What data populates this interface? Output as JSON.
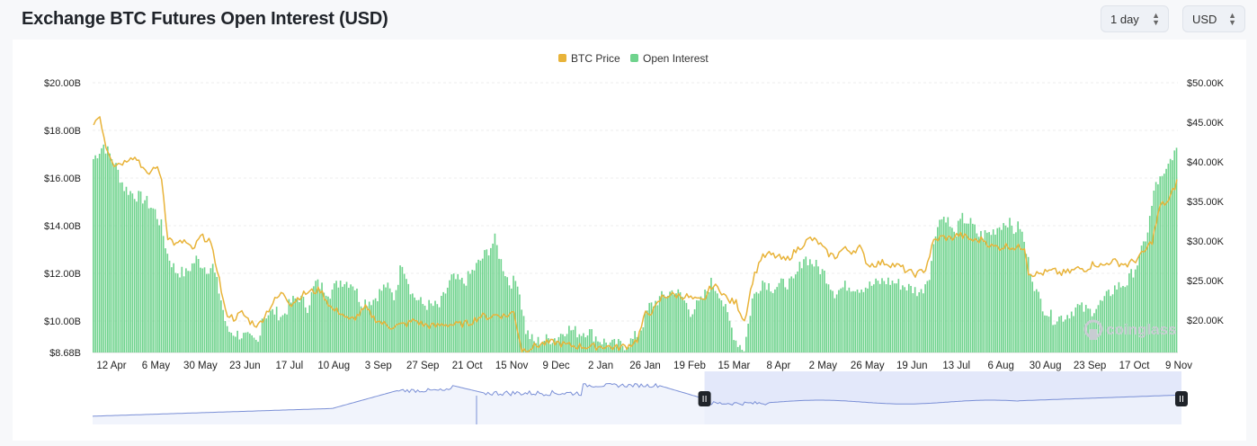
{
  "header": {
    "title": "Exchange BTC Futures Open Interest (USD)",
    "interval_select": {
      "value": "1 day"
    },
    "currency_select": {
      "value": "USD"
    }
  },
  "watermark": "coinglass",
  "colors": {
    "price_line": "#e8b339",
    "open_interest_bar": "#6fd38d",
    "navigator_line": "#7a8fd6",
    "navigator_fill": "#e3e8fa"
  },
  "chart_data": {
    "type": "bar",
    "legend": [
      {
        "name": "BTC Price",
        "color": "#e8b339"
      },
      {
        "name": "Open Interest",
        "color": "#6fd38d"
      }
    ],
    "legend_position": "top-center",
    "grid": true,
    "x_tick_labels": [
      "12 Apr",
      "6 May",
      "30 May",
      "23 Jun",
      "17 Jul",
      "10 Aug",
      "3 Sep",
      "27 Sep",
      "21 Oct",
      "15 Nov",
      "9 Dec",
      "2 Jan",
      "26 Jan",
      "19 Feb",
      "15 Mar",
      "8 Apr",
      "2 May",
      "26 May",
      "19 Jun",
      "13 Jul",
      "6 Aug",
      "30 Aug",
      "23 Sep",
      "17 Oct",
      "9 Nov"
    ],
    "y_left": {
      "label": "",
      "ticks": [
        "$8.68B",
        "$10.00B",
        "$12.00B",
        "$14.00B",
        "$16.00B",
        "$18.00B",
        "$20.00B"
      ],
      "ylim": [
        8.68,
        20.0
      ],
      "unit": "B USD"
    },
    "y_right": {
      "label": "",
      "ticks": [
        "$20.00K",
        "$25.00K",
        "$30.00K",
        "$35.00K",
        "$40.00K",
        "$45.00K",
        "$50.00K"
      ],
      "ylim": [
        15.9,
        50.0
      ],
      "unit": "K USD"
    },
    "series": [
      {
        "name": "Open Interest",
        "kind": "bar",
        "axis": "left",
        "keypoints": [
          [
            0,
            16.8
          ],
          [
            5,
            17.4
          ],
          [
            10,
            16.7
          ],
          [
            15,
            15.6
          ],
          [
            20,
            15.3
          ],
          [
            25,
            15.1
          ],
          [
            30,
            14.6
          ],
          [
            33,
            14.0
          ],
          [
            36,
            12.8
          ],
          [
            40,
            12.1
          ],
          [
            45,
            12.0
          ],
          [
            50,
            12.6
          ],
          [
            55,
            12.2
          ],
          [
            58,
            12.3
          ],
          [
            62,
            10.9
          ],
          [
            65,
            9.6
          ],
          [
            72,
            9.4
          ],
          [
            77,
            9.2
          ],
          [
            80,
            9.1
          ],
          [
            82,
            10.2
          ],
          [
            88,
            10.4
          ],
          [
            92,
            10.2
          ],
          [
            96,
            10.8
          ],
          [
            100,
            11.0
          ],
          [
            104,
            10.6
          ],
          [
            108,
            11.6
          ],
          [
            115,
            11.2
          ],
          [
            120,
            11.7
          ],
          [
            126,
            11.6
          ],
          [
            130,
            10.8
          ],
          [
            136,
            10.9
          ],
          [
            142,
            11.5
          ],
          [
            146,
            11.0
          ],
          [
            150,
            12.5
          ],
          [
            155,
            11.1
          ],
          [
            160,
            10.7
          ],
          [
            168,
            10.6
          ],
          [
            174,
            11.8
          ],
          [
            180,
            11.6
          ],
          [
            186,
            12.3
          ],
          [
            192,
            13.0
          ],
          [
            195,
            13.4
          ],
          [
            198,
            12.5
          ],
          [
            202,
            11.6
          ],
          [
            206,
            11.7
          ],
          [
            210,
            9.6
          ],
          [
            214,
            9.1
          ],
          [
            218,
            9.2
          ],
          [
            225,
            9.3
          ],
          [
            230,
            9.7
          ],
          [
            236,
            9.5
          ],
          [
            240,
            9.6
          ],
          [
            246,
            9.2
          ],
          [
            252,
            9.0
          ],
          [
            258,
            9.0
          ],
          [
            262,
            9.2
          ],
          [
            266,
            9.7
          ],
          [
            270,
            10.6
          ],
          [
            276,
            11.0
          ],
          [
            282,
            11.3
          ],
          [
            286,
            11.0
          ],
          [
            290,
            10.4
          ],
          [
            295,
            10.8
          ],
          [
            300,
            11.6
          ],
          [
            304,
            11.2
          ],
          [
            308,
            10.2
          ],
          [
            312,
            9.2
          ],
          [
            316,
            8.8
          ],
          [
            320,
            10.9
          ],
          [
            325,
            11.7
          ],
          [
            330,
            11.4
          ],
          [
            336,
            11.6
          ],
          [
            340,
            11.6
          ],
          [
            345,
            12.7
          ],
          [
            350,
            12.4
          ],
          [
            355,
            12.0
          ],
          [
            360,
            11.2
          ],
          [
            366,
            11.5
          ],
          [
            372,
            11.4
          ],
          [
            378,
            11.5
          ],
          [
            384,
            11.7
          ],
          [
            390,
            11.6
          ],
          [
            396,
            11.4
          ],
          [
            402,
            11.2
          ],
          [
            406,
            12.0
          ],
          [
            410,
            14.2
          ],
          [
            414,
            14.4
          ],
          [
            418,
            13.6
          ],
          [
            422,
            14.3
          ],
          [
            426,
            14.1
          ],
          [
            430,
            13.6
          ],
          [
            436,
            13.7
          ],
          [
            440,
            14.0
          ],
          [
            444,
            14.2
          ],
          [
            447,
            13.8
          ],
          [
            450,
            14.0
          ],
          [
            454,
            12.5
          ],
          [
            458,
            11.2
          ],
          [
            462,
            10.5
          ],
          [
            466,
            10.1
          ],
          [
            472,
            10.2
          ],
          [
            478,
            10.6
          ],
          [
            484,
            10.4
          ],
          [
            490,
            10.8
          ],
          [
            496,
            11.4
          ],
          [
            502,
            11.6
          ],
          [
            508,
            12.6
          ],
          [
            512,
            13.8
          ],
          [
            516,
            15.8
          ],
          [
            520,
            16.0
          ],
          [
            524,
            17.0
          ]
        ]
      },
      {
        "name": "BTC Price",
        "kind": "line",
        "axis": "right",
        "keypoints": [
          [
            0,
            45.0
          ],
          [
            3,
            45.8
          ],
          [
            6,
            42.0
          ],
          [
            10,
            39.7
          ],
          [
            15,
            40.0
          ],
          [
            18,
            40.8
          ],
          [
            22,
            40.2
          ],
          [
            26,
            38.2
          ],
          [
            30,
            39.5
          ],
          [
            33,
            38.0
          ],
          [
            36,
            30.5
          ],
          [
            40,
            29.5
          ],
          [
            44,
            30.0
          ],
          [
            48,
            28.8
          ],
          [
            52,
            30.5
          ],
          [
            56,
            30.2
          ],
          [
            60,
            26.5
          ],
          [
            64,
            21.0
          ],
          [
            68,
            20.2
          ],
          [
            72,
            20.9
          ],
          [
            76,
            19.8
          ],
          [
            80,
            19.3
          ],
          [
            84,
            21.0
          ],
          [
            88,
            22.5
          ],
          [
            92,
            23.5
          ],
          [
            96,
            22.0
          ],
          [
            100,
            23.0
          ],
          [
            104,
            23.5
          ],
          [
            110,
            23.8
          ],
          [
            116,
            21.3
          ],
          [
            120,
            21.0
          ],
          [
            124,
            19.9
          ],
          [
            128,
            20.5
          ],
          [
            132,
            21.5
          ],
          [
            136,
            20.3
          ],
          [
            140,
            19.6
          ],
          [
            144,
            19.2
          ],
          [
            148,
            19.3
          ],
          [
            152,
            19.5
          ],
          [
            156,
            20.0
          ],
          [
            160,
            19.4
          ],
          [
            166,
            19.2
          ],
          [
            170,
            19.5
          ],
          [
            176,
            19.4
          ],
          [
            182,
            19.6
          ],
          [
            188,
            20.5
          ],
          [
            192,
            20.4
          ],
          [
            196,
            20.7
          ],
          [
            200,
            20.5
          ],
          [
            204,
            21.0
          ],
          [
            208,
            16.2
          ],
          [
            212,
            16.5
          ],
          [
            218,
            17.0
          ],
          [
            224,
            17.2
          ],
          [
            230,
            16.8
          ],
          [
            236,
            16.7
          ],
          [
            242,
            16.6
          ],
          [
            248,
            16.7
          ],
          [
            254,
            16.5
          ],
          [
            260,
            16.8
          ],
          [
            264,
            17.5
          ],
          [
            268,
            20.8
          ],
          [
            272,
            21.2
          ],
          [
            276,
            22.9
          ],
          [
            280,
            23.2
          ],
          [
            284,
            23.1
          ],
          [
            288,
            23.0
          ],
          [
            292,
            22.5
          ],
          [
            296,
            22.4
          ],
          [
            300,
            24.3
          ],
          [
            304,
            24.0
          ],
          [
            308,
            22.5
          ],
          [
            312,
            22.2
          ],
          [
            316,
            19.9
          ],
          [
            320,
            25.0
          ],
          [
            324,
            27.8
          ],
          [
            328,
            28.3
          ],
          [
            332,
            28.0
          ],
          [
            336,
            27.5
          ],
          [
            340,
            28.5
          ],
          [
            344,
            29.5
          ],
          [
            348,
            30.3
          ],
          [
            352,
            29.8
          ],
          [
            356,
            28.5
          ],
          [
            360,
            28.0
          ],
          [
            364,
            29.0
          ],
          [
            368,
            28.7
          ],
          [
            372,
            29.2
          ],
          [
            376,
            27.0
          ],
          [
            380,
            27.1
          ],
          [
            384,
            27.3
          ],
          [
            388,
            27.0
          ],
          [
            392,
            26.7
          ],
          [
            396,
            26.0
          ],
          [
            400,
            25.8
          ],
          [
            404,
            26.5
          ],
          [
            408,
            30.0
          ],
          [
            412,
            30.5
          ],
          [
            416,
            30.3
          ],
          [
            420,
            30.8
          ],
          [
            424,
            30.4
          ],
          [
            428,
            30.0
          ],
          [
            432,
            30.2
          ],
          [
            436,
            29.3
          ],
          [
            440,
            29.2
          ],
          [
            444,
            29.4
          ],
          [
            448,
            29.1
          ],
          [
            452,
            29.3
          ],
          [
            454,
            26.0
          ],
          [
            458,
            25.8
          ],
          [
            462,
            26.0
          ],
          [
            466,
            26.2
          ],
          [
            470,
            25.9
          ],
          [
            474,
            26.1
          ],
          [
            478,
            26.5
          ],
          [
            482,
            26.5
          ],
          [
            486,
            27.2
          ],
          [
            490,
            26.8
          ],
          [
            494,
            27.5
          ],
          [
            498,
            27.2
          ],
          [
            502,
            27.0
          ],
          [
            506,
            27.6
          ],
          [
            510,
            28.5
          ],
          [
            514,
            30.0
          ],
          [
            518,
            34.5
          ],
          [
            522,
            35.0
          ],
          [
            526,
            37.5
          ]
        ]
      }
    ]
  },
  "navigator": {
    "selection_range_fraction": [
      0.562,
      1.0
    ]
  }
}
